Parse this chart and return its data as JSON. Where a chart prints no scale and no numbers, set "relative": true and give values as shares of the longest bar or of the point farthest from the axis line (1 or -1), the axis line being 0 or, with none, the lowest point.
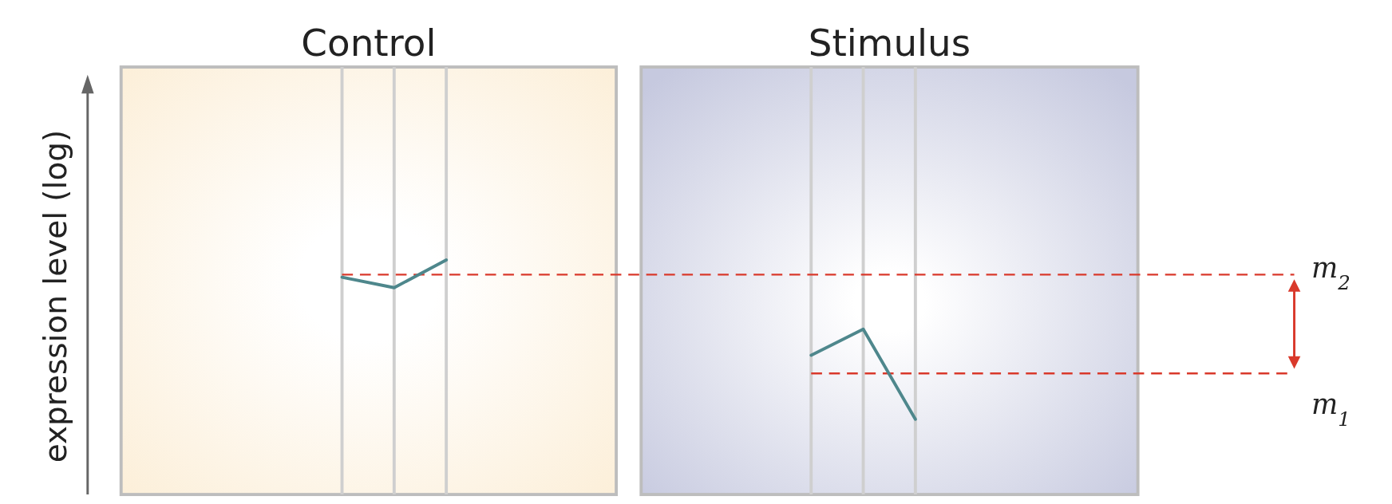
{
  "chart_data": {
    "type": "line",
    "relative": true,
    "legend": false,
    "annotations": [
      "Control",
      "Stimulus",
      "expression level (log)"
    ],
    "categories": [
      null,
      null,
      null,
      null,
      null,
      null,
      null,
      null,
      null,
      null,
      null,
      null
    ],
    "series": [
      {
        "color": "#4e878c",
        "values": [
          0.926,
          0.881,
          1,
          null,
          null,
          null,
          null,
          null,
          null,
          null,
          null,
          null
        ]
      },
      {
        "color": "#4e878c",
        "values": [
          null,
          null,
          null,
          null,
          null,
          null,
          null,
          null,
          null,
          0.591,
          0.703,
          0.316
        ]
      }
    ],
    "ref_lines": [
      {
        "axis": "y",
        "value": 0.937,
        "label": "m$_{2}$",
        "color": "#d9392b",
        "line_style": "dashed"
      },
      {
        "axis": "y",
        "value": 0.513,
        "label": "m$_{1}$",
        "color": "#d9392b",
        "line_style": "dashed"
      }
    ],
    "grid": "x"
  }
}
